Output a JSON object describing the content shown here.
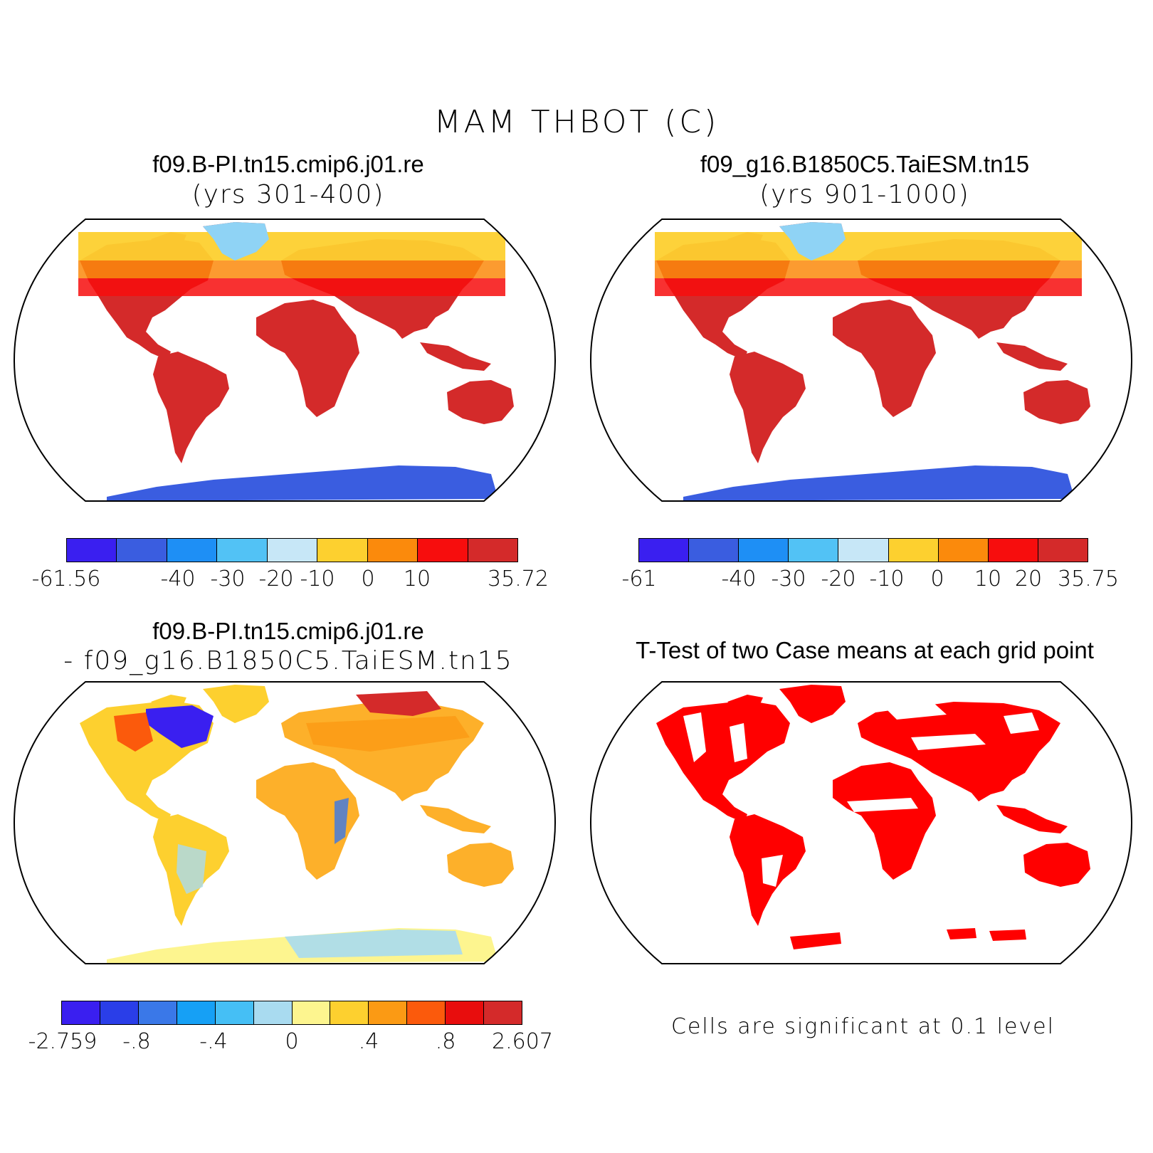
{
  "figure": {
    "title": "MAM THBOT (C)"
  },
  "panels": [
    {
      "title": "f09.B-PI.tn15.cmip6.j01.re",
      "subtitle": "(yrs 301-400)",
      "colorbar": {
        "colors": [
          "#3a1ff0",
          "#3a5de0",
          "#1e8ff5",
          "#52c2f5",
          "#c7e7f7",
          "#fdd02f",
          "#fb8a0c",
          "#f70d0d",
          "#d42a2a"
        ],
        "labels": [
          "-61.56",
          "-40",
          "-30",
          "-20",
          "-10",
          "0",
          "10",
          "35.72"
        ]
      }
    },
    {
      "title": "f09_g16.B1850C5.TaiESM.tn15",
      "subtitle": "(yrs 901-1000)",
      "colorbar": {
        "colors": [
          "#3a1ff0",
          "#3a5de0",
          "#1e8ff5",
          "#52c2f5",
          "#c7e7f7",
          "#fdd02f",
          "#fb8a0c",
          "#f70d0d",
          "#d42a2a"
        ],
        "labels": [
          "-61",
          "-40",
          "-30",
          "-20",
          "-10",
          "0",
          "10",
          "20",
          "35.75"
        ]
      }
    },
    {
      "title": "f09.B-PI.tn15.cmip6.j01.re",
      "subtitle": "- f09_g16.B1850C5.TaiESM.tn15",
      "colorbar": {
        "colors": [
          "#3a1ff0",
          "#2a3ee8",
          "#3a78e8",
          "#16a0f5",
          "#45bff5",
          "#a9dbf0",
          "#fdf58f",
          "#fdd02f",
          "#fb9a14",
          "#fb5a0c",
          "#e80d0d",
          "#d42a2a"
        ],
        "labels": [
          "-2.759",
          "-.8",
          "-.4",
          "0",
          ".4",
          ".8",
          "2.607"
        ]
      }
    },
    {
      "title": "T-Test of two Case means at each grid point",
      "note": "Cells are significant at 0.1 level",
      "significant_color": "#ff0000"
    }
  ]
}
